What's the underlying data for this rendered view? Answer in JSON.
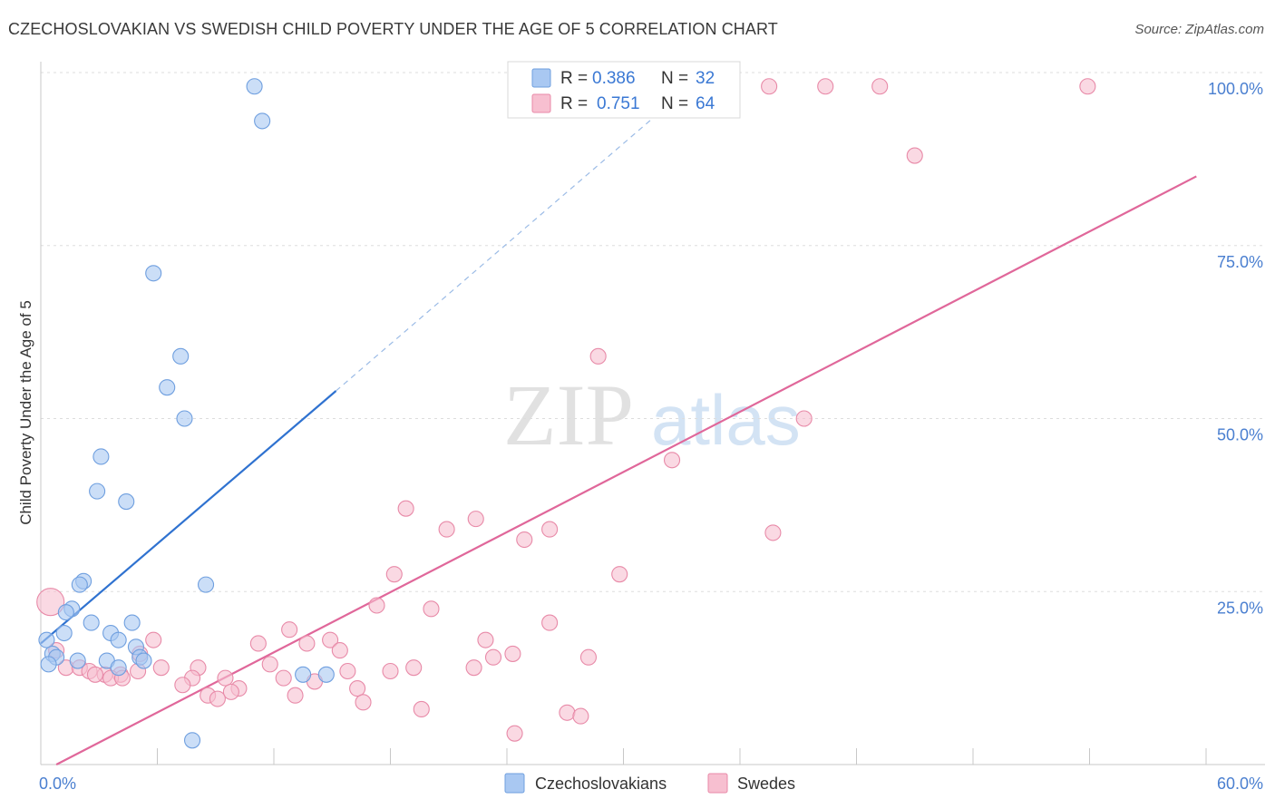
{
  "header": {
    "title": "CZECHOSLOVAKIAN VS SWEDISH CHILD POVERTY UNDER THE AGE OF 5 CORRELATION CHART",
    "source": "Source: ZipAtlas.com"
  },
  "watermark": {
    "zip": "ZIP",
    "atlas": "atlas"
  },
  "colors": {
    "blue_fill": "#a9c8f2",
    "blue_stroke": "#6f9fdf",
    "blue_line": "#2f72d0",
    "pink_fill": "#f7bfd0",
    "pink_stroke": "#e88aa8",
    "pink_line": "#e0679a",
    "tick_text": "#4a7fd0",
    "grid": "#dddddd"
  },
  "chart_data": {
    "type": "scatter",
    "xlabel": "",
    "ylabel": "Child Poverty Under the Age of 5",
    "xlim": [
      0,
      60
    ],
    "ylim": [
      0,
      100
    ],
    "x_tick_labels": [
      "0.0%",
      "60.0%"
    ],
    "y_ticks": [
      {
        "value": 25,
        "label": "25.0%"
      },
      {
        "value": 50,
        "label": "50.0%"
      },
      {
        "value": 75,
        "label": "75.0%"
      },
      {
        "value": 100,
        "label": "100.0%"
      }
    ],
    "legend": {
      "r_label": "R =",
      "n_label": "N =",
      "entries": [
        {
          "name": "Czechoslovakians",
          "r": "0.386",
          "n": "32"
        },
        {
          "name": "Swedes",
          "r": "0.751",
          "n": "64"
        }
      ]
    },
    "series": [
      {
        "name": "Czechoslovakians",
        "trend": {
          "x0": 0,
          "y0": 17.5,
          "x1": 15.2,
          "y1": 54.0,
          "dash_to_x": 33.0,
          "dash_to_y": 97.0
        },
        "points": [
          {
            "x": 11.0,
            "y": 98.0
          },
          {
            "x": 11.4,
            "y": 93.0
          },
          {
            "x": 5.8,
            "y": 71.0
          },
          {
            "x": 7.2,
            "y": 59.0
          },
          {
            "x": 6.5,
            "y": 54.5
          },
          {
            "x": 7.4,
            "y": 50.0
          },
          {
            "x": 3.1,
            "y": 44.5
          },
          {
            "x": 2.9,
            "y": 39.5
          },
          {
            "x": 4.4,
            "y": 38.0
          },
          {
            "x": 2.2,
            "y": 26.5
          },
          {
            "x": 2.0,
            "y": 26.0
          },
          {
            "x": 8.5,
            "y": 26.0
          },
          {
            "x": 1.6,
            "y": 22.5
          },
          {
            "x": 1.3,
            "y": 22.0
          },
          {
            "x": 2.6,
            "y": 20.5
          },
          {
            "x": 4.7,
            "y": 20.5
          },
          {
            "x": 1.2,
            "y": 19.0
          },
          {
            "x": 3.6,
            "y": 19.0
          },
          {
            "x": 0.3,
            "y": 18.0
          },
          {
            "x": 4.0,
            "y": 18.0
          },
          {
            "x": 4.9,
            "y": 17.0
          },
          {
            "x": 0.6,
            "y": 16.0
          },
          {
            "x": 0.8,
            "y": 15.5
          },
          {
            "x": 5.1,
            "y": 15.5
          },
          {
            "x": 1.9,
            "y": 15.0
          },
          {
            "x": 3.4,
            "y": 15.0
          },
          {
            "x": 5.3,
            "y": 15.0
          },
          {
            "x": 0.4,
            "y": 14.5
          },
          {
            "x": 4.0,
            "y": 14.0
          },
          {
            "x": 13.5,
            "y": 13.0
          },
          {
            "x": 14.7,
            "y": 13.0
          },
          {
            "x": 7.8,
            "y": 3.5
          }
        ]
      },
      {
        "name": "Swedes",
        "trend": {
          "x0": 0.8,
          "y0": 0.0,
          "x1": 59.5,
          "y1": 85.0
        },
        "points": [
          {
            "x": 37.5,
            "y": 98.0
          },
          {
            "x": 40.4,
            "y": 98.0
          },
          {
            "x": 43.2,
            "y": 98.0
          },
          {
            "x": 53.9,
            "y": 98.0
          },
          {
            "x": 45.0,
            "y": 88.0
          },
          {
            "x": 28.7,
            "y": 59.0
          },
          {
            "x": 39.3,
            "y": 50.0
          },
          {
            "x": 32.5,
            "y": 44.0
          },
          {
            "x": 18.8,
            "y": 37.0
          },
          {
            "x": 22.4,
            "y": 35.5
          },
          {
            "x": 20.9,
            "y": 34.0
          },
          {
            "x": 26.2,
            "y": 34.0
          },
          {
            "x": 37.7,
            "y": 33.5
          },
          {
            "x": 24.9,
            "y": 32.5
          },
          {
            "x": 18.2,
            "y": 27.5
          },
          {
            "x": 29.8,
            "y": 27.5
          },
          {
            "x": 0.5,
            "y": 23.5
          },
          {
            "x": 17.3,
            "y": 23.0
          },
          {
            "x": 20.1,
            "y": 22.5
          },
          {
            "x": 26.2,
            "y": 20.5
          },
          {
            "x": 12.8,
            "y": 19.5
          },
          {
            "x": 5.8,
            "y": 18.0
          },
          {
            "x": 11.2,
            "y": 17.5
          },
          {
            "x": 13.7,
            "y": 17.5
          },
          {
            "x": 14.9,
            "y": 18.0
          },
          {
            "x": 22.9,
            "y": 18.0
          },
          {
            "x": 15.4,
            "y": 16.5
          },
          {
            "x": 23.3,
            "y": 15.5
          },
          {
            "x": 24.3,
            "y": 16.0
          },
          {
            "x": 28.2,
            "y": 15.5
          },
          {
            "x": 0.8,
            "y": 16.5
          },
          {
            "x": 5.1,
            "y": 16.0
          },
          {
            "x": 11.8,
            "y": 14.5
          },
          {
            "x": 1.3,
            "y": 14.0
          },
          {
            "x": 2.0,
            "y": 14.0
          },
          {
            "x": 6.2,
            "y": 14.0
          },
          {
            "x": 8.1,
            "y": 14.0
          },
          {
            "x": 19.2,
            "y": 14.0
          },
          {
            "x": 22.3,
            "y": 14.0
          },
          {
            "x": 18.0,
            "y": 13.5
          },
          {
            "x": 15.8,
            "y": 13.5
          },
          {
            "x": 2.5,
            "y": 13.5
          },
          {
            "x": 3.3,
            "y": 13.0
          },
          {
            "x": 4.1,
            "y": 13.0
          },
          {
            "x": 5.0,
            "y": 13.5
          },
          {
            "x": 2.8,
            "y": 13.0
          },
          {
            "x": 3.6,
            "y": 12.5
          },
          {
            "x": 7.8,
            "y": 12.5
          },
          {
            "x": 9.5,
            "y": 12.5
          },
          {
            "x": 12.5,
            "y": 12.5
          },
          {
            "x": 14.1,
            "y": 12.0
          },
          {
            "x": 4.2,
            "y": 12.5
          },
          {
            "x": 7.3,
            "y": 11.5
          },
          {
            "x": 10.2,
            "y": 11.0
          },
          {
            "x": 9.8,
            "y": 10.5
          },
          {
            "x": 16.3,
            "y": 11.0
          },
          {
            "x": 8.6,
            "y": 10.0
          },
          {
            "x": 13.1,
            "y": 10.0
          },
          {
            "x": 9.1,
            "y": 9.5
          },
          {
            "x": 16.6,
            "y": 9.0
          },
          {
            "x": 19.6,
            "y": 8.0
          },
          {
            "x": 27.1,
            "y": 7.5
          },
          {
            "x": 27.8,
            "y": 7.0
          },
          {
            "x": 24.4,
            "y": 4.5
          }
        ]
      }
    ]
  }
}
